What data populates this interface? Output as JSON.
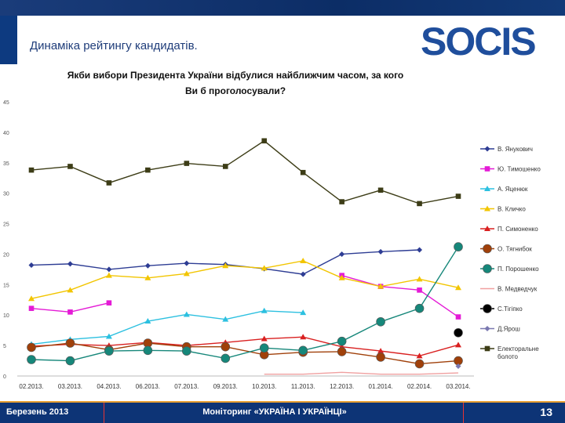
{
  "header": {
    "slide_title": "Динаміка рейтингу кандидатів.",
    "logo_text": "SOCIS"
  },
  "footer": {
    "date": "Березень 2013",
    "project": "Моніторинг «УКРАЇНА І УКРАЇНЦІ»",
    "page": "13"
  },
  "colors": {
    "header_bg": "#0c2d66",
    "logo_blue": "#1f4e9c"
  },
  "chart_data": {
    "type": "line",
    "title": "Якби вибори Президента України відбулися найближчим часом, за кого Ви б проголосували?",
    "categories": [
      "02.2013.",
      "03.2013.",
      "04.2013.",
      "06.2013.",
      "07.2013.",
      "09.2013.",
      "10.2013.",
      "11.2013.",
      "12.2013.",
      "01.2014.",
      "02.2014.",
      "03.2014."
    ],
    "ylim": [
      0,
      45
    ],
    "yticks": [
      0,
      5,
      10,
      15,
      20,
      25,
      30,
      35,
      40,
      45
    ],
    "xlabel": "",
    "ylabel": "",
    "legend_position": "right",
    "series": [
      {
        "name": "В. Янукович",
        "color": "#2e3d94",
        "marker": "diamond",
        "values": [
          18.2,
          18.4,
          17.5,
          18.1,
          18.5,
          18.3,
          17.6,
          16.7,
          20.0,
          20.4,
          20.7,
          null
        ]
      },
      {
        "name": "Ю. Тимошенко",
        "color": "#e41bd6",
        "marker": "square",
        "values": [
          11.1,
          10.5,
          12.0,
          null,
          null,
          null,
          null,
          null,
          16.5,
          14.7,
          14.1,
          9.7
        ]
      },
      {
        "name": "А. Яценюк",
        "color": "#2cc0e0",
        "marker": "triangle",
        "values": [
          5.2,
          6.0,
          6.5,
          9.0,
          10.1,
          9.3,
          10.7,
          10.4,
          null,
          null,
          null,
          null
        ]
      },
      {
        "name": "В. Кличко",
        "color": "#f2c500",
        "marker": "triangle",
        "values": [
          12.7,
          14.1,
          16.5,
          16.1,
          16.8,
          18.1,
          17.7,
          18.9,
          16.1,
          14.7,
          15.9,
          14.5
        ]
      },
      {
        "name": "П. Симоненко",
        "color": "#d92020",
        "marker": "triangle",
        "values": [
          4.9,
          5.2,
          5.0,
          5.5,
          5.0,
          5.5,
          6.1,
          6.4,
          4.8,
          4.1,
          3.3,
          5.1
        ]
      },
      {
        "name": "О. Тягнибок",
        "color": "#a0400a",
        "marker": "circle",
        "values": [
          4.7,
          5.4,
          4.3,
          5.4,
          4.8,
          4.8,
          3.5,
          3.9,
          4.0,
          3.1,
          2.0,
          2.5
        ]
      },
      {
        "name": "П. Порошенко",
        "color": "#16877a",
        "marker": "circle",
        "values": [
          2.7,
          2.5,
          4.1,
          4.2,
          4.1,
          2.9,
          4.6,
          4.2,
          5.7,
          8.9,
          11.1,
          21.2
        ]
      },
      {
        "name": "В. Медведчук",
        "color": "#f0a0a0",
        "marker": "none",
        "values": [
          null,
          null,
          null,
          null,
          null,
          null,
          0.3,
          0.3,
          0.6,
          0.3,
          0.3,
          0.5
        ]
      },
      {
        "name": "С.Тігіпко",
        "color": "#000000",
        "marker": "circle",
        "values": [
          null,
          null,
          null,
          null,
          null,
          null,
          null,
          null,
          null,
          null,
          null,
          7.1
        ]
      },
      {
        "name": "Д.Ярош",
        "color": "#7a78b0",
        "marker": "diamond",
        "values": [
          null,
          null,
          null,
          null,
          null,
          null,
          null,
          null,
          null,
          null,
          null,
          1.6
        ]
      },
      {
        "name": "Електоральне болото",
        "color": "#3d3d17",
        "marker": "square",
        "values": [
          33.8,
          34.4,
          31.7,
          33.8,
          34.9,
          34.4,
          38.6,
          33.4,
          28.6,
          30.5,
          28.3,
          29.5
        ]
      }
    ]
  }
}
